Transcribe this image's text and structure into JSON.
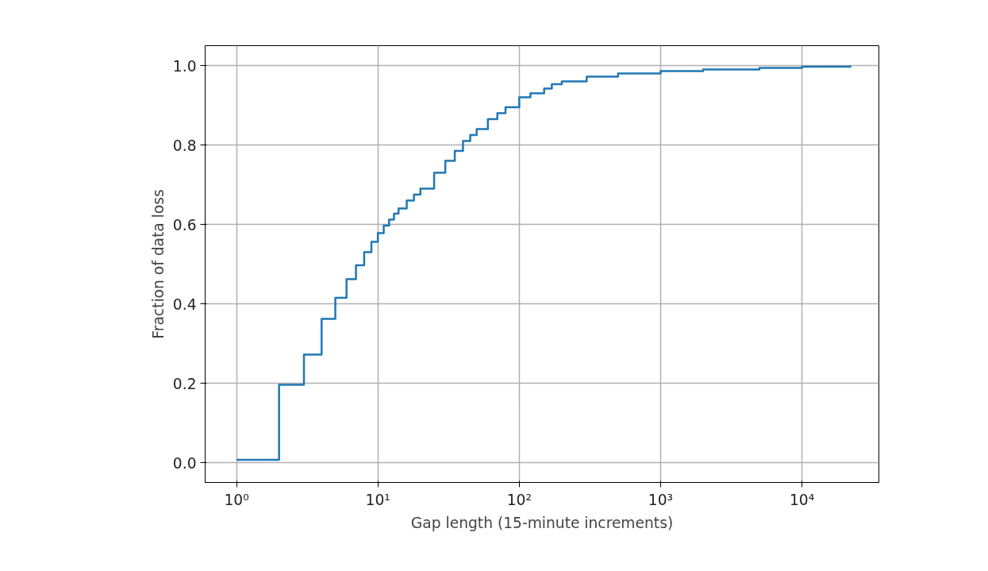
{
  "chart_data": {
    "type": "step",
    "xlabel": "Gap length (15-minute increments)",
    "ylabel": "Fraction of data loss",
    "log": "x",
    "grid": true,
    "x": [
      1,
      2,
      3,
      4,
      5,
      6,
      7,
      8,
      9,
      10,
      11,
      12,
      13,
      14,
      16,
      18,
      20,
      25,
      30,
      35,
      40,
      45,
      50,
      60,
      70,
      80,
      100,
      120,
      150,
      170,
      200,
      300,
      500,
      1000,
      2000,
      5000,
      10000,
      22000
    ],
    "series": [
      {
        "color": "#1f77b4",
        "values": [
          0.007,
          0.196,
          0.272,
          0.362,
          0.415,
          0.462,
          0.497,
          0.53,
          0.556,
          0.578,
          0.597,
          0.612,
          0.627,
          0.64,
          0.66,
          0.675,
          0.69,
          0.73,
          0.76,
          0.785,
          0.81,
          0.825,
          0.84,
          0.865,
          0.88,
          0.895,
          0.92,
          0.93,
          0.942,
          0.953,
          0.96,
          0.972,
          0.98,
          0.986,
          0.99,
          0.994,
          0.997,
          1.0
        ]
      }
    ],
    "xlim": [
      0.6,
      35000
    ],
    "ylim": [
      -0.05,
      1.05
    ],
    "xticks": [
      {
        "value": 1,
        "label": "10⁰"
      },
      {
        "value": 10,
        "label": "10¹"
      },
      {
        "value": 100,
        "label": "10²"
      },
      {
        "value": 1000,
        "label": "10³"
      },
      {
        "value": 10000,
        "label": "10⁴"
      }
    ],
    "yticks": [
      {
        "value": 0,
        "label": "0.0"
      },
      0.2,
      0.4,
      0.6,
      0.8,
      {
        "value": 1,
        "label": "1.0"
      }
    ]
  }
}
